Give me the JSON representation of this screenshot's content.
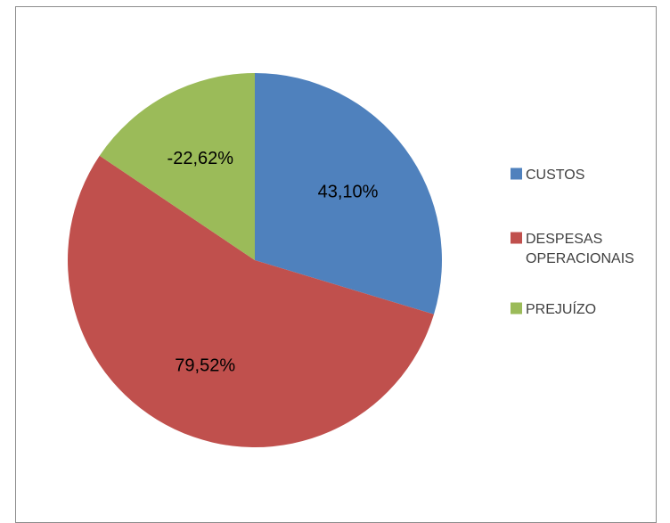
{
  "chart_data": {
    "type": "pie",
    "categories": [
      "CUSTOS",
      "DESPESAS OPERACIONAIS",
      "PREJUÍZO"
    ],
    "values": [
      43.1,
      79.52,
      -22.62
    ],
    "data_labels": [
      "43,10%",
      "79,52%",
      "-22,62%"
    ],
    "legend": {
      "position": "right",
      "entries": [
        {
          "lines": [
            "CUSTOS"
          ],
          "color": "#4F81BD"
        },
        {
          "lines": [
            "DESPESAS",
            "OPERACIONAIS"
          ],
          "color": "#C0504D"
        },
        {
          "lines": [
            "PREJUÍZO"
          ],
          "color": "#9BBB59"
        }
      ]
    },
    "colors": [
      "#4F81BD",
      "#C0504D",
      "#9BBB59"
    ],
    "start_angle_deg": 0,
    "direction": "clockwise"
  }
}
